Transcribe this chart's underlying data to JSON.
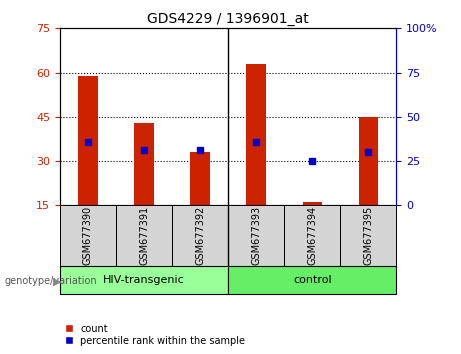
{
  "title": "GDS4229 / 1396901_at",
  "samples": [
    "GSM677390",
    "GSM677391",
    "GSM677392",
    "GSM677393",
    "GSM677394",
    "GSM677395"
  ],
  "bar_values": [
    59,
    43,
    33,
    63,
    16,
    45
  ],
  "percentile_values": [
    36,
    31,
    31,
    36,
    25,
    30
  ],
  "ylim_left": [
    15,
    75
  ],
  "ylim_right": [
    0,
    100
  ],
  "yticks_left": [
    15,
    30,
    45,
    60,
    75
  ],
  "yticks_right": [
    0,
    25,
    50,
    75,
    100
  ],
  "ytick_labels_right": [
    "0",
    "25",
    "50",
    "75",
    "100%"
  ],
  "bar_color": "#cc2200",
  "dot_color": "#0000cc",
  "group1_label": "HIV-transgenic",
  "group2_label": "control",
  "group1_color": "#99ff99",
  "group2_color": "#66ee66",
  "genotype_label": "genotype/variation",
  "legend_count": "count",
  "legend_percentile": "percentile rank within the sample",
  "title_fontsize": 10,
  "tick_fontsize": 8,
  "sample_fontsize": 7,
  "group_fontsize": 8,
  "bar_width": 0.35
}
